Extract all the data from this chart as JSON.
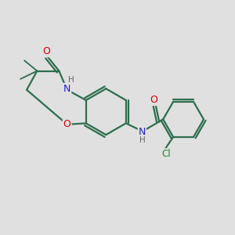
{
  "background_color": "#e0e0e0",
  "bond_color": "#2d6e4e",
  "atom_colors": {
    "O": "#cc0000",
    "N": "#2222cc",
    "H": "#666666",
    "Cl": "#228833",
    "C": "#2d6e4e"
  },
  "figsize": [
    3.0,
    3.0
  ],
  "dpi": 100
}
